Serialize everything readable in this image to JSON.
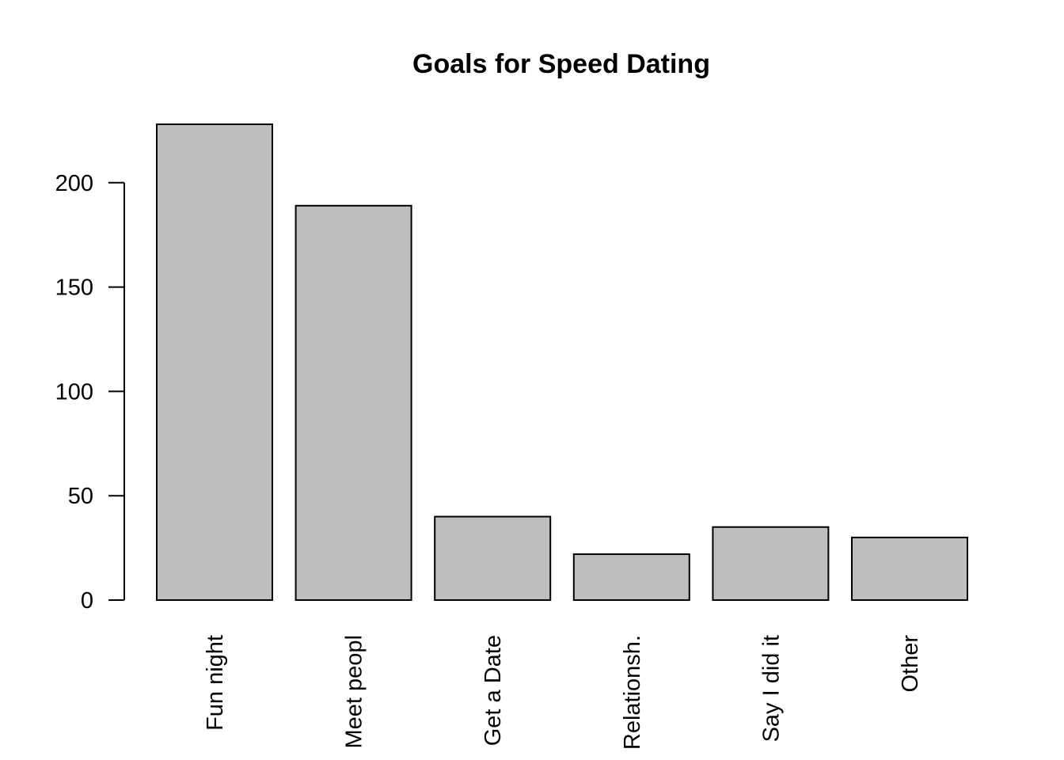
{
  "chart_data": {
    "type": "bar",
    "title": "Goals for Speed Dating",
    "xlabel": "",
    "ylabel": "",
    "categories": [
      "Fun night",
      "Meet peopl",
      "Get a Date",
      "Relationsh.",
      "Say I did it",
      "Other"
    ],
    "values": [
      228,
      189,
      40,
      22,
      35,
      30
    ],
    "ylim": [
      0,
      228
    ],
    "yticks": [
      0,
      50,
      100,
      150,
      200
    ],
    "bar_color": "#bebebe",
    "grid": false,
    "legend": "none"
  }
}
